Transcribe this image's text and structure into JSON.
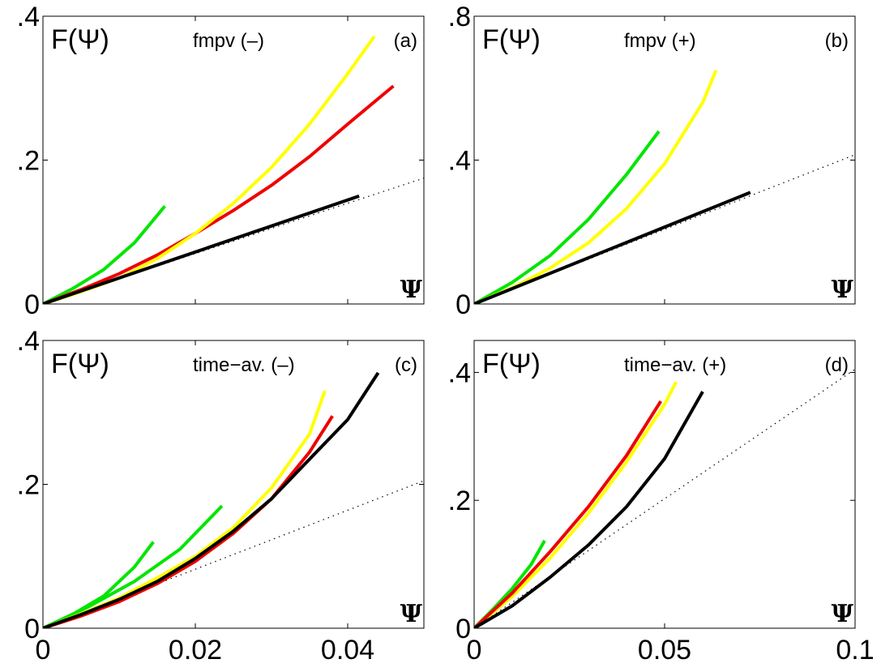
{
  "chart_data": [
    {
      "type": "line",
      "panel_label": "(a)",
      "title": "fmpv (–)",
      "ylabel": "F(Ψ)",
      "xlabel": "Ψ",
      "xlim": [
        0,
        0.05
      ],
      "ylim": [
        0,
        0.4
      ],
      "xticks": [],
      "yticks": [
        0,
        0.2,
        0.4
      ],
      "ytick_labels": [
        "0",
        ".2",
        ".4"
      ],
      "series": [
        {
          "color": "#00e600",
          "x": [
            0,
            0.004,
            0.008,
            0.012,
            0.016
          ],
          "y": [
            0,
            0.022,
            0.048,
            0.085,
            0.136
          ]
        },
        {
          "color": "#ee0000",
          "x": [
            0,
            0.005,
            0.01,
            0.015,
            0.02,
            0.025,
            0.03,
            0.035,
            0.04,
            0.046
          ],
          "y": [
            0,
            0.02,
            0.042,
            0.068,
            0.098,
            0.13,
            0.165,
            0.205,
            0.25,
            0.303
          ]
        },
        {
          "color": "#ffff00",
          "x": [
            0,
            0.005,
            0.01,
            0.015,
            0.02,
            0.025,
            0.03,
            0.035,
            0.04,
            0.0435
          ],
          "y": [
            0,
            0.017,
            0.036,
            0.063,
            0.098,
            0.14,
            0.19,
            0.25,
            0.32,
            0.372
          ]
        },
        {
          "color": "#000000",
          "x": [
            0,
            0.0415
          ],
          "y": [
            0,
            0.15
          ]
        }
      ],
      "reference_line": {
        "color": "#000000",
        "style": "dotted",
        "x": [
          0,
          0.05
        ],
        "y": [
          0,
          0.175
        ]
      }
    },
    {
      "type": "line",
      "panel_label": "(b)",
      "title": "fmpv (+)",
      "ylabel": "F(Ψ)",
      "xlabel": "Ψ",
      "xlim": [
        0,
        0.1
      ],
      "ylim": [
        0,
        0.8
      ],
      "xticks": [],
      "yticks": [
        0,
        0.4,
        0.8
      ],
      "ytick_labels": [
        "0",
        ".4",
        ".8"
      ],
      "series": [
        {
          "color": "#00e600",
          "x": [
            0,
            0.01,
            0.02,
            0.03,
            0.04,
            0.0485
          ],
          "y": [
            0,
            0.06,
            0.135,
            0.235,
            0.36,
            0.48
          ]
        },
        {
          "color": "#ffff00",
          "x": [
            0,
            0.01,
            0.02,
            0.03,
            0.04,
            0.05,
            0.06,
            0.0635
          ],
          "y": [
            0,
            0.045,
            0.1,
            0.17,
            0.265,
            0.39,
            0.56,
            0.65
          ]
        },
        {
          "color": "#000000",
          "x": [
            0,
            0.0725
          ],
          "y": [
            0,
            0.31
          ]
        }
      ],
      "reference_line": {
        "color": "#000000",
        "style": "dotted",
        "x": [
          0,
          0.1
        ],
        "y": [
          0,
          0.415
        ]
      }
    },
    {
      "type": "line",
      "panel_label": "(c)",
      "title": "time−av. (–)",
      "ylabel": "F(Ψ)",
      "xlabel": "Ψ",
      "xlim": [
        0,
        0.05
      ],
      "ylim": [
        0,
        0.4
      ],
      "xticks": [
        0,
        0.02,
        0.04
      ],
      "xtick_labels": [
        "0",
        "0.02",
        "0.04"
      ],
      "yticks": [
        0,
        0.2,
        0.4
      ],
      "ytick_labels": [
        "0",
        ".2",
        ".4"
      ],
      "series": [
        {
          "color": "#00e600",
          "x": [
            0,
            0.004,
            0.008,
            0.012,
            0.0145
          ],
          "y": [
            0,
            0.02,
            0.045,
            0.085,
            0.12
          ]
        },
        {
          "color": "#00e600",
          "x": [
            0,
            0.006,
            0.012,
            0.018,
            0.0235
          ],
          "y": [
            0,
            0.03,
            0.065,
            0.11,
            0.17
          ]
        },
        {
          "color": "#ffff00",
          "x": [
            0,
            0.005,
            0.01,
            0.015,
            0.02,
            0.025,
            0.03,
            0.035,
            0.037
          ],
          "y": [
            0,
            0.02,
            0.042,
            0.07,
            0.1,
            0.14,
            0.195,
            0.27,
            0.33
          ]
        },
        {
          "color": "#ee0000",
          "x": [
            0,
            0.005,
            0.01,
            0.015,
            0.02,
            0.025,
            0.03,
            0.035,
            0.038
          ],
          "y": [
            0,
            0.017,
            0.037,
            0.062,
            0.093,
            0.132,
            0.18,
            0.245,
            0.295
          ]
        },
        {
          "color": "#000000",
          "x": [
            0,
            0.005,
            0.01,
            0.015,
            0.02,
            0.025,
            0.03,
            0.035,
            0.04,
            0.044
          ],
          "y": [
            0,
            0.019,
            0.04,
            0.065,
            0.097,
            0.135,
            0.18,
            0.235,
            0.29,
            0.355
          ]
        }
      ],
      "reference_line": {
        "color": "#000000",
        "style": "dotted",
        "x": [
          0,
          0.05
        ],
        "y": [
          0,
          0.205
        ]
      }
    },
    {
      "type": "line",
      "panel_label": "(d)",
      "title": "time−av. (+)",
      "ylabel": "F(Ψ)",
      "xlabel": "Ψ",
      "xlim": [
        0,
        0.1
      ],
      "ylim": [
        0,
        0.45
      ],
      "xticks": [
        0,
        0.05,
        0.1
      ],
      "xtick_labels": [
        "0",
        "0.05",
        "0.1"
      ],
      "yticks": [
        0,
        0.2,
        0.4
      ],
      "ytick_labels": [
        "0",
        ".2",
        ".4"
      ],
      "series": [
        {
          "color": "#00e600",
          "x": [
            0,
            0.005,
            0.01,
            0.015,
            0.0185
          ],
          "y": [
            0,
            0.03,
            0.062,
            0.1,
            0.137
          ]
        },
        {
          "color": "#ffff00",
          "x": [
            0,
            0.01,
            0.02,
            0.03,
            0.04,
            0.05,
            0.053
          ],
          "y": [
            0,
            0.05,
            0.11,
            0.18,
            0.26,
            0.35,
            0.385
          ]
        },
        {
          "color": "#ee0000",
          "x": [
            0,
            0.01,
            0.02,
            0.03,
            0.04,
            0.049
          ],
          "y": [
            0,
            0.055,
            0.12,
            0.19,
            0.27,
            0.355
          ]
        },
        {
          "color": "#000000",
          "x": [
            0,
            0.01,
            0.02,
            0.03,
            0.04,
            0.05,
            0.06
          ],
          "y": [
            0,
            0.035,
            0.08,
            0.13,
            0.19,
            0.265,
            0.37
          ]
        }
      ],
      "reference_line": {
        "color": "#000000",
        "style": "dotted",
        "x": [
          0,
          0.1
        ],
        "y": [
          0,
          0.405
        ]
      }
    }
  ]
}
